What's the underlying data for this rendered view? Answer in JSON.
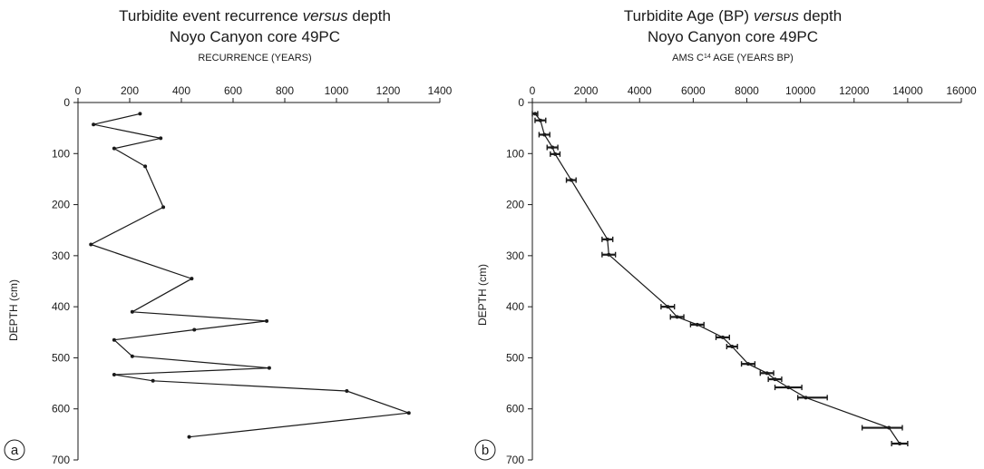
{
  "chart_data": [
    {
      "type": "line",
      "panel_label": "a",
      "title_line1_pre": "Turbidite event recurrence ",
      "title_line1_em": "versus",
      "title_line1_post": " depth",
      "title_line2": "Noyo Canyon core 49PC",
      "xlabel": "RECURRENCE (YEARS)",
      "ylabel": "DEPTH (cm)",
      "xlim": [
        0,
        1400
      ],
      "ylim": [
        0,
        700
      ],
      "x_ticks": [
        0,
        200,
        400,
        600,
        800,
        1000,
        1200,
        1400
      ],
      "y_ticks": [
        0,
        100,
        200,
        300,
        400,
        500,
        600,
        700
      ],
      "x_axis_position": "top",
      "y_axis_inverted": true,
      "grid": false,
      "points": [
        {
          "x": 240,
          "y": 22
        },
        {
          "x": 60,
          "y": 43
        },
        {
          "x": 320,
          "y": 70
        },
        {
          "x": 140,
          "y": 90
        },
        {
          "x": 260,
          "y": 125
        },
        {
          "x": 330,
          "y": 205
        },
        {
          "x": 50,
          "y": 278
        },
        {
          "x": 440,
          "y": 345
        },
        {
          "x": 210,
          "y": 410
        },
        {
          "x": 730,
          "y": 428
        },
        {
          "x": 450,
          "y": 445
        },
        {
          "x": 140,
          "y": 465
        },
        {
          "x": 210,
          "y": 497
        },
        {
          "x": 740,
          "y": 520
        },
        {
          "x": 140,
          "y": 533
        },
        {
          "x": 290,
          "y": 545
        },
        {
          "x": 1040,
          "y": 565
        },
        {
          "x": 1280,
          "y": 608
        },
        {
          "x": 430,
          "y": 655
        }
      ]
    },
    {
      "type": "line",
      "panel_label": "b",
      "title_line1_pre": "Turbidite Age (BP) ",
      "title_line1_em": "versus",
      "title_line1_post": " depth",
      "title_line2": "Noyo Canyon core 49PC",
      "xlabel_pre": "AMS C",
      "xlabel_sup": "14",
      "xlabel_post": " AGE (YEARS BP)",
      "ylabel": "DEPTH (cm)",
      "xlim": [
        0,
        16000
      ],
      "ylim": [
        0,
        700
      ],
      "x_ticks": [
        0,
        2000,
        4000,
        6000,
        8000,
        10000,
        12000,
        14000,
        16000
      ],
      "y_ticks": [
        0,
        100,
        200,
        300,
        400,
        500,
        600,
        700
      ],
      "x_axis_position": "top",
      "y_axis_inverted": true,
      "grid": false,
      "points": [
        {
          "x": 100,
          "y": 22,
          "err_lo": 100,
          "err_hi": 100
        },
        {
          "x": 300,
          "y": 35,
          "err_lo": 200,
          "err_hi": 200
        },
        {
          "x": 450,
          "y": 63,
          "err_lo": 200,
          "err_hi": 200
        },
        {
          "x": 750,
          "y": 88,
          "err_lo": 200,
          "err_hi": 200
        },
        {
          "x": 850,
          "y": 101,
          "err_lo": 180,
          "err_hi": 180
        },
        {
          "x": 1450,
          "y": 152,
          "err_lo": 180,
          "err_hi": 180
        },
        {
          "x": 2800,
          "y": 268,
          "err_lo": 200,
          "err_hi": 200
        },
        {
          "x": 2850,
          "y": 298,
          "err_lo": 250,
          "err_hi": 250
        },
        {
          "x": 5050,
          "y": 400,
          "err_lo": 250,
          "err_hi": 250
        },
        {
          "x": 5400,
          "y": 420,
          "err_lo": 250,
          "err_hi": 250
        },
        {
          "x": 6150,
          "y": 435,
          "err_lo": 250,
          "err_hi": 250
        },
        {
          "x": 7100,
          "y": 460,
          "err_lo": 250,
          "err_hi": 250
        },
        {
          "x": 7450,
          "y": 478,
          "err_lo": 200,
          "err_hi": 200
        },
        {
          "x": 8050,
          "y": 512,
          "err_lo": 250,
          "err_hi": 250
        },
        {
          "x": 8750,
          "y": 530,
          "err_lo": 250,
          "err_hi": 250
        },
        {
          "x": 9050,
          "y": 542,
          "err_lo": 250,
          "err_hi": 250
        },
        {
          "x": 9550,
          "y": 558,
          "err_lo": 500,
          "err_hi": 500
        },
        {
          "x": 10200,
          "y": 578,
          "err_lo": 300,
          "err_hi": 800
        },
        {
          "x": 13300,
          "y": 637,
          "err_lo": 1000,
          "err_hi": 500
        },
        {
          "x": 13700,
          "y": 668,
          "err_lo": 300,
          "err_hi": 300
        }
      ]
    }
  ]
}
